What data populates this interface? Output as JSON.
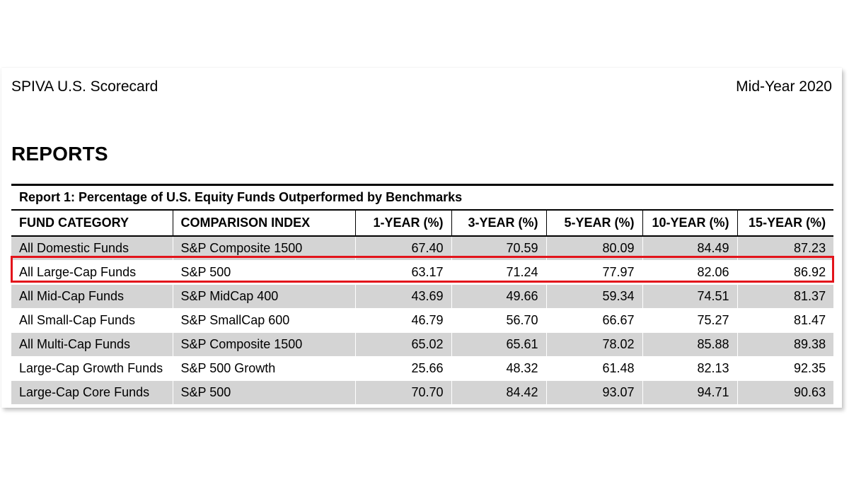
{
  "header": {
    "title": "SPIVA U.S. Scorecard",
    "period": "Mid-Year 2020"
  },
  "section": {
    "heading": "REPORTS"
  },
  "report": {
    "caption": "Report 1: Percentage of U.S. Equity Funds Outperformed by Benchmarks",
    "columns": [
      "FUND CATEGORY",
      "COMPARISON INDEX",
      "1-YEAR (%)",
      "3-YEAR (%)",
      "5-YEAR (%)",
      "10-YEAR (%)",
      "15-YEAR (%)"
    ],
    "rows": [
      [
        "All Domestic Funds",
        "S&P Composite 1500",
        "67.40",
        "70.59",
        "80.09",
        "84.49",
        "87.23"
      ],
      [
        "All Large-Cap Funds",
        "S&P 500",
        "63.17",
        "71.24",
        "77.97",
        "82.06",
        "86.92"
      ],
      [
        "All Mid-Cap Funds",
        "S&P MidCap 400",
        "43.69",
        "49.66",
        "59.34",
        "74.51",
        "81.37"
      ],
      [
        "All Small-Cap Funds",
        "S&P SmallCap 600",
        "46.79",
        "56.70",
        "66.67",
        "75.27",
        "81.47"
      ],
      [
        "All Multi-Cap Funds",
        "S&P Composite 1500",
        "65.02",
        "65.61",
        "78.02",
        "85.88",
        "89.38"
      ],
      [
        "Large-Cap Growth Funds",
        "S&P 500 Growth",
        "25.66",
        "48.32",
        "61.48",
        "82.13",
        "92.35"
      ],
      [
        "Large-Cap Core Funds",
        "S&P 500",
        "70.70",
        "84.42",
        "93.07",
        "94.71",
        "90.63"
      ]
    ],
    "highlighted_row_index": 1
  },
  "colors": {
    "row_shade": "#d4d4d4",
    "highlight": "#e3141b",
    "text": "#000000"
  },
  "chart_data": {
    "type": "table",
    "title": "Report 1: Percentage of U.S. Equity Funds Outperformed by Benchmarks",
    "columns": [
      "FUND CATEGORY",
      "COMPARISON INDEX",
      "1-YEAR (%)",
      "3-YEAR (%)",
      "5-YEAR (%)",
      "10-YEAR (%)",
      "15-YEAR (%)"
    ],
    "rows": [
      [
        "All Domestic Funds",
        "S&P Composite 1500",
        67.4,
        70.59,
        80.09,
        84.49,
        87.23
      ],
      [
        "All Large-Cap Funds",
        "S&P 500",
        63.17,
        71.24,
        77.97,
        82.06,
        86.92
      ],
      [
        "All Mid-Cap Funds",
        "S&P MidCap 400",
        43.69,
        49.66,
        59.34,
        74.51,
        81.37
      ],
      [
        "All Small-Cap Funds",
        "S&P SmallCap 600",
        46.79,
        56.7,
        66.67,
        75.27,
        81.47
      ],
      [
        "All Multi-Cap Funds",
        "S&P Composite 1500",
        65.02,
        65.61,
        78.02,
        85.88,
        89.38
      ],
      [
        "Large-Cap Growth Funds",
        "S&P 500 Growth",
        25.66,
        48.32,
        61.48,
        82.13,
        92.35
      ],
      [
        "Large-Cap Core Funds",
        "S&P 500",
        70.7,
        84.42,
        93.07,
        94.71,
        90.63
      ]
    ]
  }
}
